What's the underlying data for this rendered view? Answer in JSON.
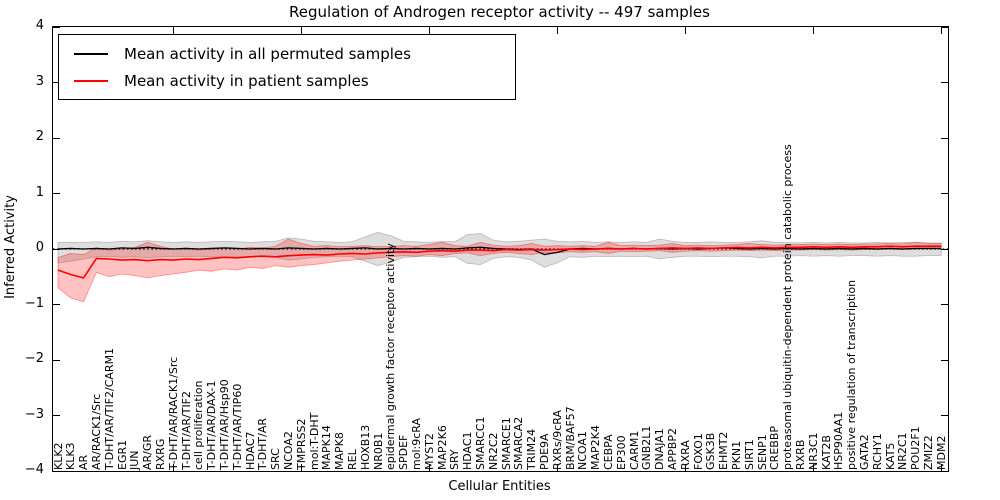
{
  "chart_data": {
    "type": "line",
    "title": "Regulation of Androgen receptor activity -- 497 samples",
    "xlabel": "Cellular Entities",
    "ylabel": "Inferred Activity",
    "ylim": [
      -4,
      4
    ],
    "yticks": [
      4,
      3,
      2,
      1,
      0,
      -1,
      -2,
      -3,
      -4
    ],
    "ytick_labels": [
      "4",
      "3",
      "2",
      "1",
      "0",
      "−1",
      "−2",
      "−3",
      "−4"
    ],
    "grid": false,
    "zero_line": "dotted",
    "legend_position": "upper left",
    "categories": [
      "KLK2",
      "KLK3",
      "AR",
      "AR/RACK1/Src",
      "T-DHT/AR/TIF2/CARM1",
      "EGR1",
      "JUN",
      "AR/GR",
      "RXRG",
      "T-DHT/AR/RACK1/Src",
      "T-DHT/AR/TIF2",
      "cell proliferation",
      "T-DHT/AR/DAX-1",
      "T-DHT/AR/Hsp90",
      "T-DHT/AR/TIP60",
      "HDAC7",
      "T-DHT/AR",
      "SRC",
      "NCOA2",
      "TMPRSS2",
      "mol:T-DHT",
      "MAPK14",
      "MAPK8",
      "REL",
      "HOXB13",
      "NR0B1",
      "epidermal growth factor receptor activity",
      "SPDEF",
      "mol:9cRA",
      "MYST2",
      "MAP2K6",
      "SRY",
      "HDAC1",
      "SMARCC1",
      "NR2C2",
      "SMARCE1",
      "SMARCA2",
      "TRIM24",
      "PDE9A",
      "RXRs/9cRA",
      "BRM/BAF57",
      "NCOA1",
      "MAP2K4",
      "CEBPA",
      "EP300",
      "CARM1",
      "GNB2L1",
      "DNAJA1",
      "APPBP2",
      "RXRA",
      "FOXO1",
      "GSK3B",
      "EHMT2",
      "PKN1",
      "SIRT1",
      "SENP1",
      "CREBBP",
      "proteasomal ubiquitin-dependent protein catabolic process",
      "RXRB",
      "NR3C1",
      "KAT2B",
      "HSP90AA1",
      "positive regulation of transcription",
      "GATA2",
      "RCHY1",
      "KAT5",
      "NR2C1",
      "POU2F1",
      "ZMIZ2",
      "MDM2"
    ],
    "series": [
      {
        "name": "Mean activity in all permuted samples",
        "color": "#000000",
        "band_color": "rgba(0,0,0,0.13)",
        "band_edge": "rgba(0,0,0,0.22)",
        "values": [
          0.0,
          0.01,
          0.0,
          0.01,
          0.0,
          0.02,
          0.01,
          0.03,
          0.01,
          0.0,
          0.01,
          0.0,
          0.01,
          0.02,
          0.01,
          0.0,
          0.01,
          0.0,
          0.02,
          0.01,
          0.0,
          0.01,
          0.0,
          0.01,
          0.02,
          0.0,
          0.01,
          0.0,
          0.01,
          0.0,
          0.01,
          0.0,
          0.02,
          0.03,
          0.01,
          0.0,
          -0.01,
          0.0,
          -0.1,
          -0.06,
          0.0,
          0.01,
          0.0,
          0.01,
          0.0,
          0.01,
          0.0,
          0.01,
          0.0,
          0.01,
          0.0,
          0.01,
          0.02,
          0.01,
          0.0,
          0.01,
          0.0,
          0.01,
          0.0,
          0.01,
          0.0,
          0.01,
          0.0,
          0.01,
          0.0,
          0.01,
          0.0,
          0.01,
          0.01,
          0.01
        ],
        "band_upper": [
          0.12,
          0.12,
          0.12,
          0.13,
          0.12,
          0.14,
          0.13,
          0.15,
          0.13,
          0.12,
          0.13,
          0.12,
          0.13,
          0.14,
          0.13,
          0.12,
          0.13,
          0.14,
          0.2,
          0.18,
          0.14,
          0.13,
          0.12,
          0.13,
          0.22,
          0.3,
          0.24,
          0.14,
          0.13,
          0.12,
          0.14,
          0.13,
          0.26,
          0.28,
          0.16,
          0.13,
          0.14,
          0.16,
          0.18,
          0.14,
          0.13,
          0.14,
          0.12,
          0.13,
          0.12,
          0.13,
          0.12,
          0.18,
          0.14,
          0.12,
          0.12,
          0.13,
          0.12,
          0.12,
          0.13,
          0.15,
          0.12,
          0.12,
          0.11,
          0.12,
          0.11,
          0.12,
          0.11,
          0.11,
          0.12,
          0.11,
          0.12,
          0.12,
          0.11,
          0.11
        ],
        "band_lower": [
          -0.25,
          -0.22,
          -0.18,
          -0.14,
          -0.13,
          -0.15,
          -0.14,
          -0.16,
          -0.14,
          -0.13,
          -0.14,
          -0.13,
          -0.14,
          -0.15,
          -0.14,
          -0.13,
          -0.14,
          -0.15,
          -0.2,
          -0.18,
          -0.15,
          -0.14,
          -0.13,
          -0.14,
          -0.22,
          -0.3,
          -0.24,
          -0.15,
          -0.14,
          -0.13,
          -0.15,
          -0.14,
          -0.26,
          -0.28,
          -0.17,
          -0.14,
          -0.15,
          -0.2,
          -0.33,
          -0.25,
          -0.14,
          -0.15,
          -0.13,
          -0.14,
          -0.13,
          -0.14,
          -0.13,
          -0.18,
          -0.15,
          -0.13,
          -0.13,
          -0.14,
          -0.13,
          -0.13,
          -0.14,
          -0.16,
          -0.13,
          -0.13,
          -0.12,
          -0.13,
          -0.12,
          -0.13,
          -0.12,
          -0.12,
          -0.13,
          -0.12,
          -0.13,
          -0.13,
          -0.12,
          -0.12
        ]
      },
      {
        "name": "Mean activity in patient samples",
        "color": "#ff0000",
        "band_color": "rgba(255,0,0,0.24)",
        "band_edge": "rgba(255,0,0,0.40)",
        "values": [
          -0.38,
          -0.46,
          -0.52,
          -0.17,
          -0.18,
          -0.2,
          -0.19,
          -0.21,
          -0.19,
          -0.2,
          -0.18,
          -0.19,
          -0.17,
          -0.15,
          -0.16,
          -0.14,
          -0.13,
          -0.14,
          -0.12,
          -0.11,
          -0.1,
          -0.11,
          -0.09,
          -0.08,
          -0.09,
          -0.07,
          -0.06,
          -0.05,
          -0.06,
          -0.04,
          -0.03,
          -0.04,
          -0.02,
          -0.02,
          -0.03,
          -0.01,
          -0.02,
          -0.01,
          -0.02,
          -0.01,
          0.0,
          -0.01,
          0.0,
          0.01,
          0.0,
          0.01,
          0.0,
          0.01,
          0.02,
          0.01,
          0.02,
          0.01,
          0.02,
          0.03,
          0.02,
          0.03,
          0.02,
          0.03,
          0.03,
          0.04,
          0.03,
          0.04,
          0.03,
          0.04,
          0.04,
          0.05,
          0.04,
          0.05,
          0.05,
          0.05
        ],
        "band_upper": [
          -0.15,
          -0.08,
          -0.1,
          0.02,
          -0.02,
          0.0,
          0.03,
          0.12,
          0.05,
          0.0,
          0.02,
          -0.02,
          0.0,
          0.02,
          0.0,
          0.03,
          0.02,
          0.05,
          0.18,
          0.1,
          0.05,
          0.06,
          0.04,
          0.05,
          0.06,
          0.04,
          0.05,
          0.06,
          0.05,
          0.08,
          0.12,
          0.06,
          0.05,
          0.12,
          0.07,
          0.05,
          0.06,
          0.1,
          0.05,
          0.06,
          0.05,
          0.06,
          0.05,
          0.12,
          0.06,
          0.07,
          0.06,
          0.07,
          0.1,
          0.06,
          0.07,
          0.06,
          0.07,
          0.08,
          0.1,
          0.08,
          0.07,
          0.08,
          0.08,
          0.09,
          0.08,
          0.09,
          0.08,
          0.09,
          0.09,
          0.1,
          0.09,
          0.12,
          0.1,
          0.1
        ],
        "band_lower": [
          -0.7,
          -0.88,
          -0.95,
          -0.42,
          -0.5,
          -0.45,
          -0.48,
          -0.52,
          -0.48,
          -0.45,
          -0.42,
          -0.38,
          -0.4,
          -0.36,
          -0.38,
          -0.33,
          -0.35,
          -0.3,
          -0.33,
          -0.3,
          -0.28,
          -0.25,
          -0.22,
          -0.2,
          -0.18,
          -0.16,
          -0.14,
          -0.12,
          -0.13,
          -0.1,
          -0.12,
          -0.08,
          -0.07,
          -0.12,
          -0.08,
          -0.06,
          -0.08,
          -0.1,
          -0.06,
          -0.07,
          -0.05,
          -0.06,
          -0.05,
          -0.08,
          -0.04,
          -0.05,
          -0.04,
          -0.03,
          -0.06,
          -0.04,
          -0.03,
          -0.04,
          -0.03,
          -0.02,
          -0.03,
          -0.02,
          -0.03,
          -0.02,
          -0.02,
          -0.01,
          -0.02,
          -0.01,
          -0.02,
          -0.01,
          -0.01,
          0.0,
          -0.01,
          0.0,
          0.0,
          0.0
        ]
      }
    ]
  },
  "legend": {
    "entries": [
      {
        "label": "Mean activity in all permuted samples",
        "color": "#000000"
      },
      {
        "label": "Mean activity in patient samples",
        "color": "#ff0000"
      }
    ]
  }
}
